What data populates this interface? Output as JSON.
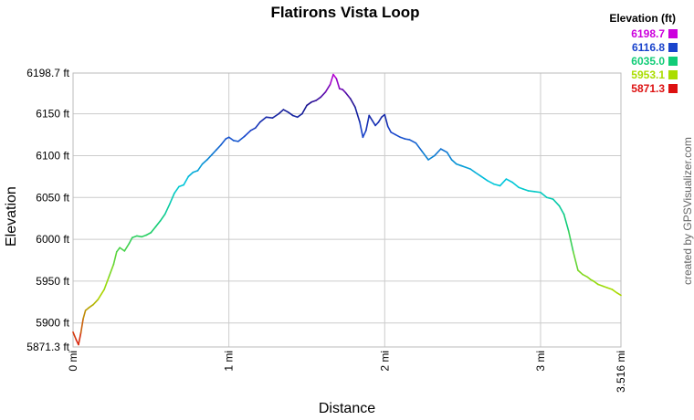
{
  "chart_data": {
    "type": "line",
    "title": "Flatirons Vista Loop",
    "xlabel": "Distance",
    "ylabel": "Elevation",
    "xlim": [
      0,
      3.516
    ],
    "ylim": [
      5871.3,
      6198.7
    ],
    "grid": true,
    "x_tick_labels": [
      "0 mi",
      "1 mi",
      "2 mi",
      "3 mi",
      "3.516 mi"
    ],
    "x_tick_values": [
      0,
      1,
      2,
      3,
      3.516
    ],
    "y_tick_labels": [
      "5871.3 ft",
      "5900 ft",
      "5950 ft",
      "6000 ft",
      "6050 ft",
      "6100 ft",
      "6150 ft",
      "6198.7 ft"
    ],
    "y_tick_values": [
      5871.3,
      5900,
      5950,
      6000,
      6050,
      6100,
      6150,
      6198.7
    ],
    "legend": {
      "title": "Elevation (ft)",
      "placement": "top-right",
      "entries": [
        {
          "label": "6198.7",
          "color": "#cc00dd"
        },
        {
          "label": "6116.8",
          "color": "#1a44cc"
        },
        {
          "label": "6035.0",
          "color": "#11cc77"
        },
        {
          "label": "5953.1",
          "color": "#aadd00"
        },
        {
          "label": "5871.3",
          "color": "#dd1111"
        }
      ]
    },
    "series": [
      {
        "x": [
          0,
          0.02,
          0.035,
          0.05,
          0.065,
          0.08,
          0.1,
          0.13,
          0.16,
          0.2,
          0.23,
          0.26,
          0.28,
          0.3,
          0.33,
          0.36,
          0.38,
          0.41,
          0.44,
          0.47,
          0.5,
          0.53,
          0.56,
          0.59,
          0.62,
          0.65,
          0.68,
          0.71,
          0.74,
          0.77,
          0.8,
          0.83,
          0.86,
          0.89,
          0.92,
          0.95,
          0.98,
          1.0,
          1.03,
          1.06,
          1.1,
          1.14,
          1.17,
          1.2,
          1.24,
          1.28,
          1.32,
          1.35,
          1.38,
          1.41,
          1.44,
          1.47,
          1.5,
          1.53,
          1.56,
          1.59,
          1.62,
          1.65,
          1.67,
          1.69,
          1.71,
          1.73,
          1.75,
          1.78,
          1.81,
          1.84,
          1.86,
          1.88,
          1.9,
          1.92,
          1.94,
          1.96,
          1.98,
          2.0,
          2.02,
          2.04,
          2.07,
          2.1,
          2.13,
          2.16,
          2.2,
          2.24,
          2.28,
          2.32,
          2.36,
          2.4,
          2.43,
          2.46,
          2.49,
          2.52,
          2.55,
          2.58,
          2.62,
          2.66,
          2.7,
          2.74,
          2.78,
          2.82,
          2.86,
          2.89,
          2.92,
          2.96,
          3.0,
          3.04,
          3.08,
          3.12,
          3.15,
          3.18,
          3.21,
          3.24,
          3.27,
          3.3,
          3.32,
          3.34,
          3.37,
          3.4,
          3.43,
          3.46,
          3.49,
          3.516
        ],
        "y": [
          5889,
          5880,
          5874,
          5888,
          5905,
          5915,
          5918,
          5922,
          5928,
          5940,
          5955,
          5970,
          5985,
          5990,
          5986,
          5995,
          6002,
          6004,
          6003,
          6005,
          6008,
          6015,
          6022,
          6030,
          6042,
          6055,
          6063,
          6065,
          6075,
          6080,
          6082,
          6090,
          6095,
          6101,
          6107,
          6113,
          6120,
          6122,
          6118,
          6117,
          6123,
          6130,
          6133,
          6140,
          6146,
          6145,
          6150,
          6155,
          6152,
          6148,
          6146,
          6150,
          6160,
          6164,
          6166,
          6170,
          6176,
          6185,
          6197,
          6192,
          6180,
          6179,
          6175,
          6168,
          6158,
          6140,
          6122,
          6130,
          6148,
          6142,
          6136,
          6140,
          6146,
          6149,
          6135,
          6128,
          6125,
          6122,
          6120,
          6119,
          6115,
          6105,
          6095,
          6100,
          6108,
          6104,
          6095,
          6090,
          6088,
          6086,
          6084,
          6080,
          6075,
          6070,
          6066,
          6064,
          6072,
          6068,
          6062,
          6060,
          6058,
          6057,
          6056,
          6050,
          6048,
          6040,
          6030,
          6010,
          5985,
          5963,
          5958,
          5955,
          5952,
          5950,
          5946,
          5944,
          5942,
          5940,
          5936,
          5933
        ]
      }
    ]
  },
  "credit": "created by GPSVisualizer.com"
}
